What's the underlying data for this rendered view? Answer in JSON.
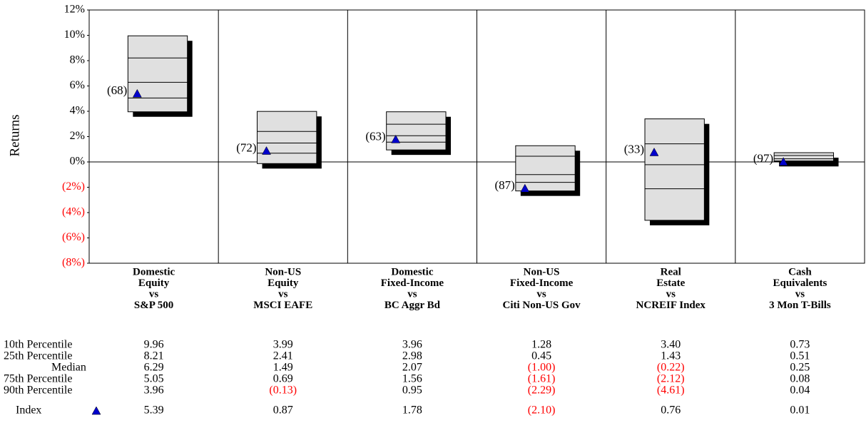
{
  "chart_data": {
    "type": "percentile_box",
    "y_label": "Returns",
    "ylim": [
      -8,
      12
    ],
    "yticks": [
      {
        "value": 12,
        "label": "12%"
      },
      {
        "value": 10,
        "label": "10%"
      },
      {
        "value": 8,
        "label": "8%"
      },
      {
        "value": 6,
        "label": "6%"
      },
      {
        "value": 4,
        "label": "4%"
      },
      {
        "value": 2,
        "label": "2%"
      },
      {
        "value": 0,
        "label": "0%"
      },
      {
        "value": -2,
        "label": "(2%)"
      },
      {
        "value": -4,
        "label": "(4%)"
      },
      {
        "value": -6,
        "label": "(6%)"
      },
      {
        "value": -8,
        "label": "(8%)"
      }
    ],
    "negative_color": "#ff0000",
    "box_color": "#e0e0e0",
    "shadow_color": "#000000",
    "categories": [
      [
        "Domestic",
        "Equity",
        "vs",
        "S&P 500"
      ],
      [
        "Non-US",
        "Equity",
        "vs",
        "MSCI EAFE"
      ],
      [
        "Domestic",
        "Fixed-Income",
        "vs",
        "BC Aggr Bd"
      ],
      [
        "Non-US",
        "Fixed-Income",
        "vs",
        "Citi Non-US Gov"
      ],
      [
        "Real",
        "Estate",
        "vs",
        "NCREIF Index"
      ],
      [
        "Cash",
        "Equivalents",
        "vs",
        "3 Mon T-Bills"
      ]
    ],
    "series": [
      {
        "name": "10th Percentile",
        "values": [
          9.96,
          3.99,
          3.96,
          1.28,
          3.4,
          0.73
        ],
        "value_labels": [
          "9.96",
          "3.99",
          "3.96",
          "1.28",
          "3.40",
          "0.73"
        ]
      },
      {
        "name": "25th Percentile",
        "values": [
          8.21,
          2.41,
          2.98,
          0.45,
          1.43,
          0.51
        ],
        "value_labels": [
          "8.21",
          "2.41",
          "2.98",
          "0.45",
          "1.43",
          "0.51"
        ]
      },
      {
        "name": "Median",
        "values": [
          6.29,
          1.49,
          2.07,
          -1.0,
          -0.22,
          0.25
        ],
        "value_labels": [
          "6.29",
          "1.49",
          "2.07",
          "(1.00)",
          "(0.22)",
          "0.25"
        ]
      },
      {
        "name": "75th Percentile",
        "values": [
          5.05,
          0.69,
          1.56,
          -1.61,
          -2.12,
          0.08
        ],
        "value_labels": [
          "5.05",
          "0.69",
          "1.56",
          "(1.61)",
          "(2.12)",
          "0.08"
        ]
      },
      {
        "name": "90th Percentile",
        "values": [
          3.96,
          -0.13,
          0.95,
          -2.29,
          -4.61,
          0.04
        ],
        "value_labels": [
          "3.96",
          "(0.13)",
          "0.95",
          "(2.29)",
          "(4.61)",
          "0.04"
        ]
      },
      {
        "name": "Index",
        "color": "#0000cc",
        "values": [
          5.39,
          0.87,
          1.78,
          -2.1,
          0.76,
          0.01
        ],
        "value_labels": [
          "5.39",
          "0.87",
          "1.78",
          "(2.10)",
          "0.76",
          "0.01"
        ]
      }
    ],
    "ranks": [
      68,
      72,
      63,
      87,
      33,
      97
    ],
    "rank_labels": [
      "(68)",
      "(72)",
      "(63)",
      "(87)",
      "(33)",
      "(97)"
    ]
  }
}
